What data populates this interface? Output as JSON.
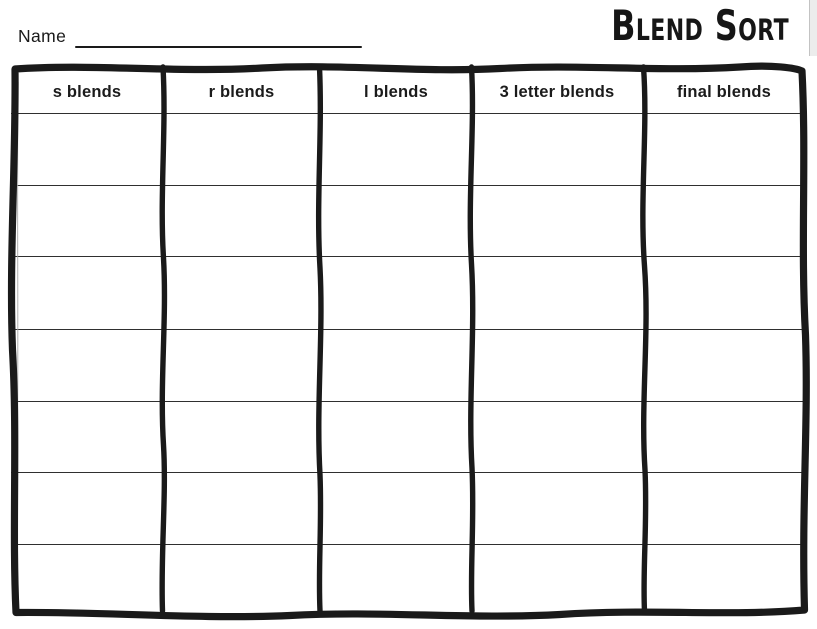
{
  "page": {
    "name_label": "Name",
    "title": "Blend Sort"
  },
  "table": {
    "columns": [
      {
        "label": "s blends"
      },
      {
        "label": "r blends"
      },
      {
        "label": "l blends"
      },
      {
        "label": "3 letter blends"
      },
      {
        "label": "final blends"
      }
    ],
    "row_count": 7,
    "cell_value": ""
  },
  "icons": {
    "scrollbar_thumb": "scrollbar-thumb"
  },
  "colors": {
    "ink": "#1a1a1a",
    "line": "#2f2f2f",
    "paper": "#ffffff",
    "scroll_track": "#ececec",
    "scroll_border": "#c3c3c3"
  }
}
